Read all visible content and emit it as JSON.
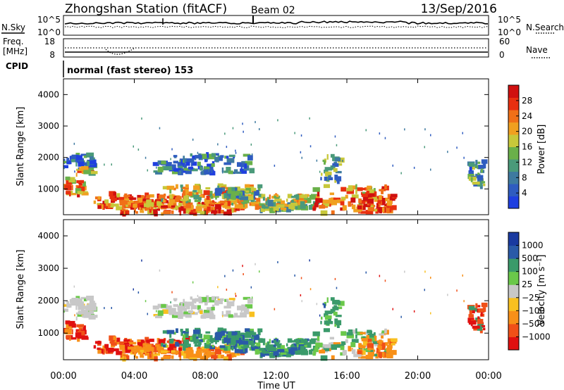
{
  "header": {
    "title": "Zhongshan Station (fitACF)",
    "beam": "Beam 02",
    "date": "13/Sep/2016"
  },
  "strip": {
    "nsky_label": "N.Sky",
    "nsky_ticks": [
      "10^5",
      "10^0"
    ],
    "nsearch_label": "N.Search",
    "nsearch_ticks": [
      "10^5",
      "10^0"
    ],
    "freq_label": "Freq.",
    "freq_unit": "[MHz]",
    "freq_ticks": [
      "18",
      "8"
    ],
    "nave_label": "Nave",
    "nave_ticks": [
      "60",
      "0"
    ],
    "cpid_label": "CPID",
    "cpid_text": "normal (fast stereo) 153"
  },
  "colors": {
    "power_scale": [
      "#1f3fe0",
      "#2f5cc0",
      "#3e7aa0",
      "#4a9a7a",
      "#6ab04a",
      "#c8c83a",
      "#f0a020",
      "#f07018",
      "#e83010",
      "#d01010"
    ],
    "velocity_scale": [
      "#e01010",
      "#f05018",
      "#f89018",
      "#f8c020",
      "#c8c8c8",
      "#6ac84a",
      "#3a9a6a",
      "#2a5aa8",
      "#1a3aa0"
    ],
    "gray": "#b8b8b8"
  },
  "chart_data": [
    {
      "type": "heatmap",
      "name": "power",
      "ylabel": "Slant Range [km]",
      "yticks": [
        "1000",
        "2000",
        "3000",
        "4000"
      ],
      "xticks": [
        "00:00",
        "04:00",
        "08:00",
        "12:00",
        "16:00",
        "20:00",
        "00:00"
      ],
      "xlim_hours": [
        0,
        24
      ],
      "ylim_km": [
        180,
        4500
      ],
      "colorbar_label": "Power [dB]",
      "colorbar_ticks": [
        "4",
        "8",
        "12",
        "16",
        "20",
        "24",
        "28"
      ],
      "colorbar_range": [
        0,
        32
      ]
    },
    {
      "type": "heatmap",
      "name": "velocity",
      "ylabel": "Slant Range [km]",
      "yticks": [
        "1000",
        "2000",
        "3000",
        "4000"
      ],
      "xticks": [
        "00:00",
        "04:00",
        "08:00",
        "12:00",
        "16:00",
        "20:00",
        "00:00"
      ],
      "xlabel": "Time UT",
      "xlim_hours": [
        0,
        24
      ],
      "ylim_km": [
        180,
        4500
      ],
      "colorbar_label": "Velocity [m s⁻¹]",
      "colorbar_ticks": [
        "1000",
        "500",
        "100",
        "25",
        "−25",
        "−100",
        "−500",
        "−1000"
      ]
    }
  ]
}
